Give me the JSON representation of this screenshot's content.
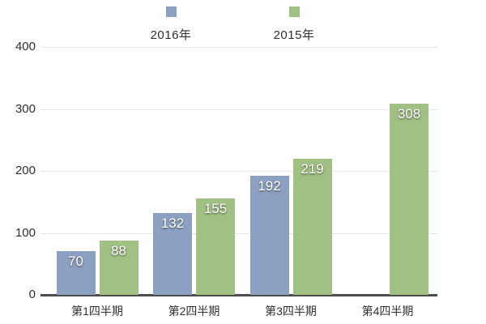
{
  "chart_data": {
    "type": "bar",
    "title": "",
    "categories": [
      "第1四半期",
      "第2四半期",
      "第3四半期",
      "第4四半期"
    ],
    "series": [
      {
        "name": "2016年",
        "color": "#8CA0C1",
        "values": [
          70,
          132,
          192,
          null
        ]
      },
      {
        "name": "2015年",
        "color": "#A0C183",
        "values": [
          88,
          155,
          219,
          308
        ]
      }
    ],
    "xlabel": "",
    "ylabel": "",
    "ylim": [
      0,
      400
    ],
    "yticks": [
      0,
      100,
      200,
      300,
      400
    ],
    "grid": true,
    "legend_position": "top"
  },
  "colors": {
    "axis_line": "#4d4d4d",
    "gridline": "#e7e7e7",
    "tick_text": "#2f2f2f",
    "value_text": "#ffffff",
    "background": "#ffffff"
  }
}
